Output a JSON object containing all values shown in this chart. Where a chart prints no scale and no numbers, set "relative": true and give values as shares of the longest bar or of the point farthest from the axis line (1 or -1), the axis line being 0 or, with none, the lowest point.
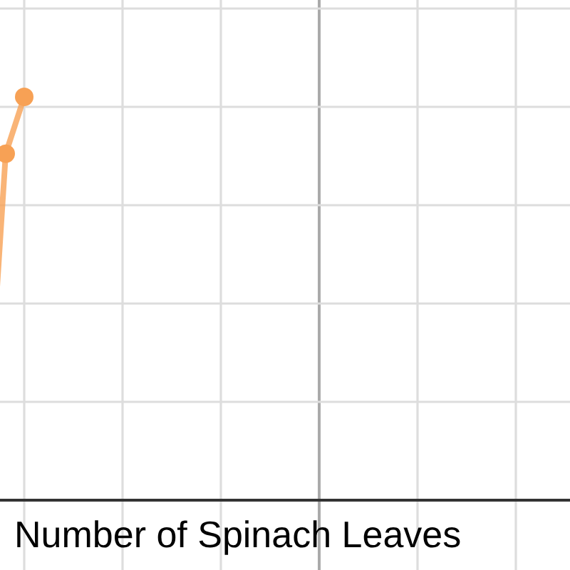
{
  "chart_data": {
    "type": "line",
    "xlabel": "Number of Spinach Leaves",
    "categories": [
      null,
      null,
      null
    ],
    "relative": true,
    "series": [
      {
        "color": "#f7a155",
        "values": [
          0.145,
          0.859,
          1
        ]
      }
    ],
    "grid": true,
    "marker": "circle",
    "line_style": "solid"
  }
}
